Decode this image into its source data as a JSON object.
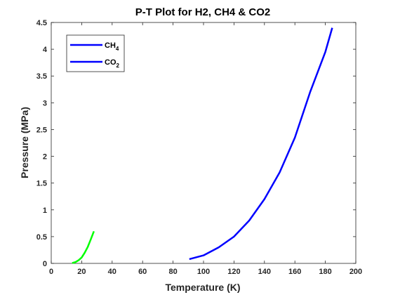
{
  "chart_data": {
    "type": "line",
    "title": "P-T Plot for H2, CH4 & CO2",
    "xlabel": "Temperature (K)",
    "ylabel": "Pressure (MPa)",
    "xlim": [
      0,
      200
    ],
    "ylim": [
      0,
      4.5
    ],
    "xticks": [
      "0",
      "20",
      "40",
      "60",
      "80",
      "100",
      "120",
      "140",
      "160",
      "180",
      "200"
    ],
    "yticks": [
      "0",
      "0.5",
      "1",
      "1.5",
      "2",
      "2.5",
      "3",
      "3.5",
      "4",
      "4.5"
    ],
    "grid": false,
    "legend_position": "top-left",
    "legend": [
      {
        "base": "CH",
        "sub": "4",
        "color": "#0000ff"
      },
      {
        "base": "CO",
        "sub": "2",
        "color": "#0000ff"
      }
    ],
    "series": [
      {
        "color": "#00ff00",
        "x": [
          13.8,
          16,
          18,
          20,
          22,
          24,
          26,
          28
        ],
        "y": [
          0.007,
          0.025,
          0.06,
          0.11,
          0.2,
          0.31,
          0.45,
          0.6
        ]
      },
      {
        "color": "#0000ff",
        "x": [
          90.7,
          100,
          110,
          120,
          130,
          140,
          150,
          160,
          170,
          180,
          184.5
        ],
        "y": [
          0.08,
          0.15,
          0.3,
          0.5,
          0.8,
          1.2,
          1.7,
          2.35,
          3.2,
          3.95,
          4.4
        ]
      }
    ]
  }
}
